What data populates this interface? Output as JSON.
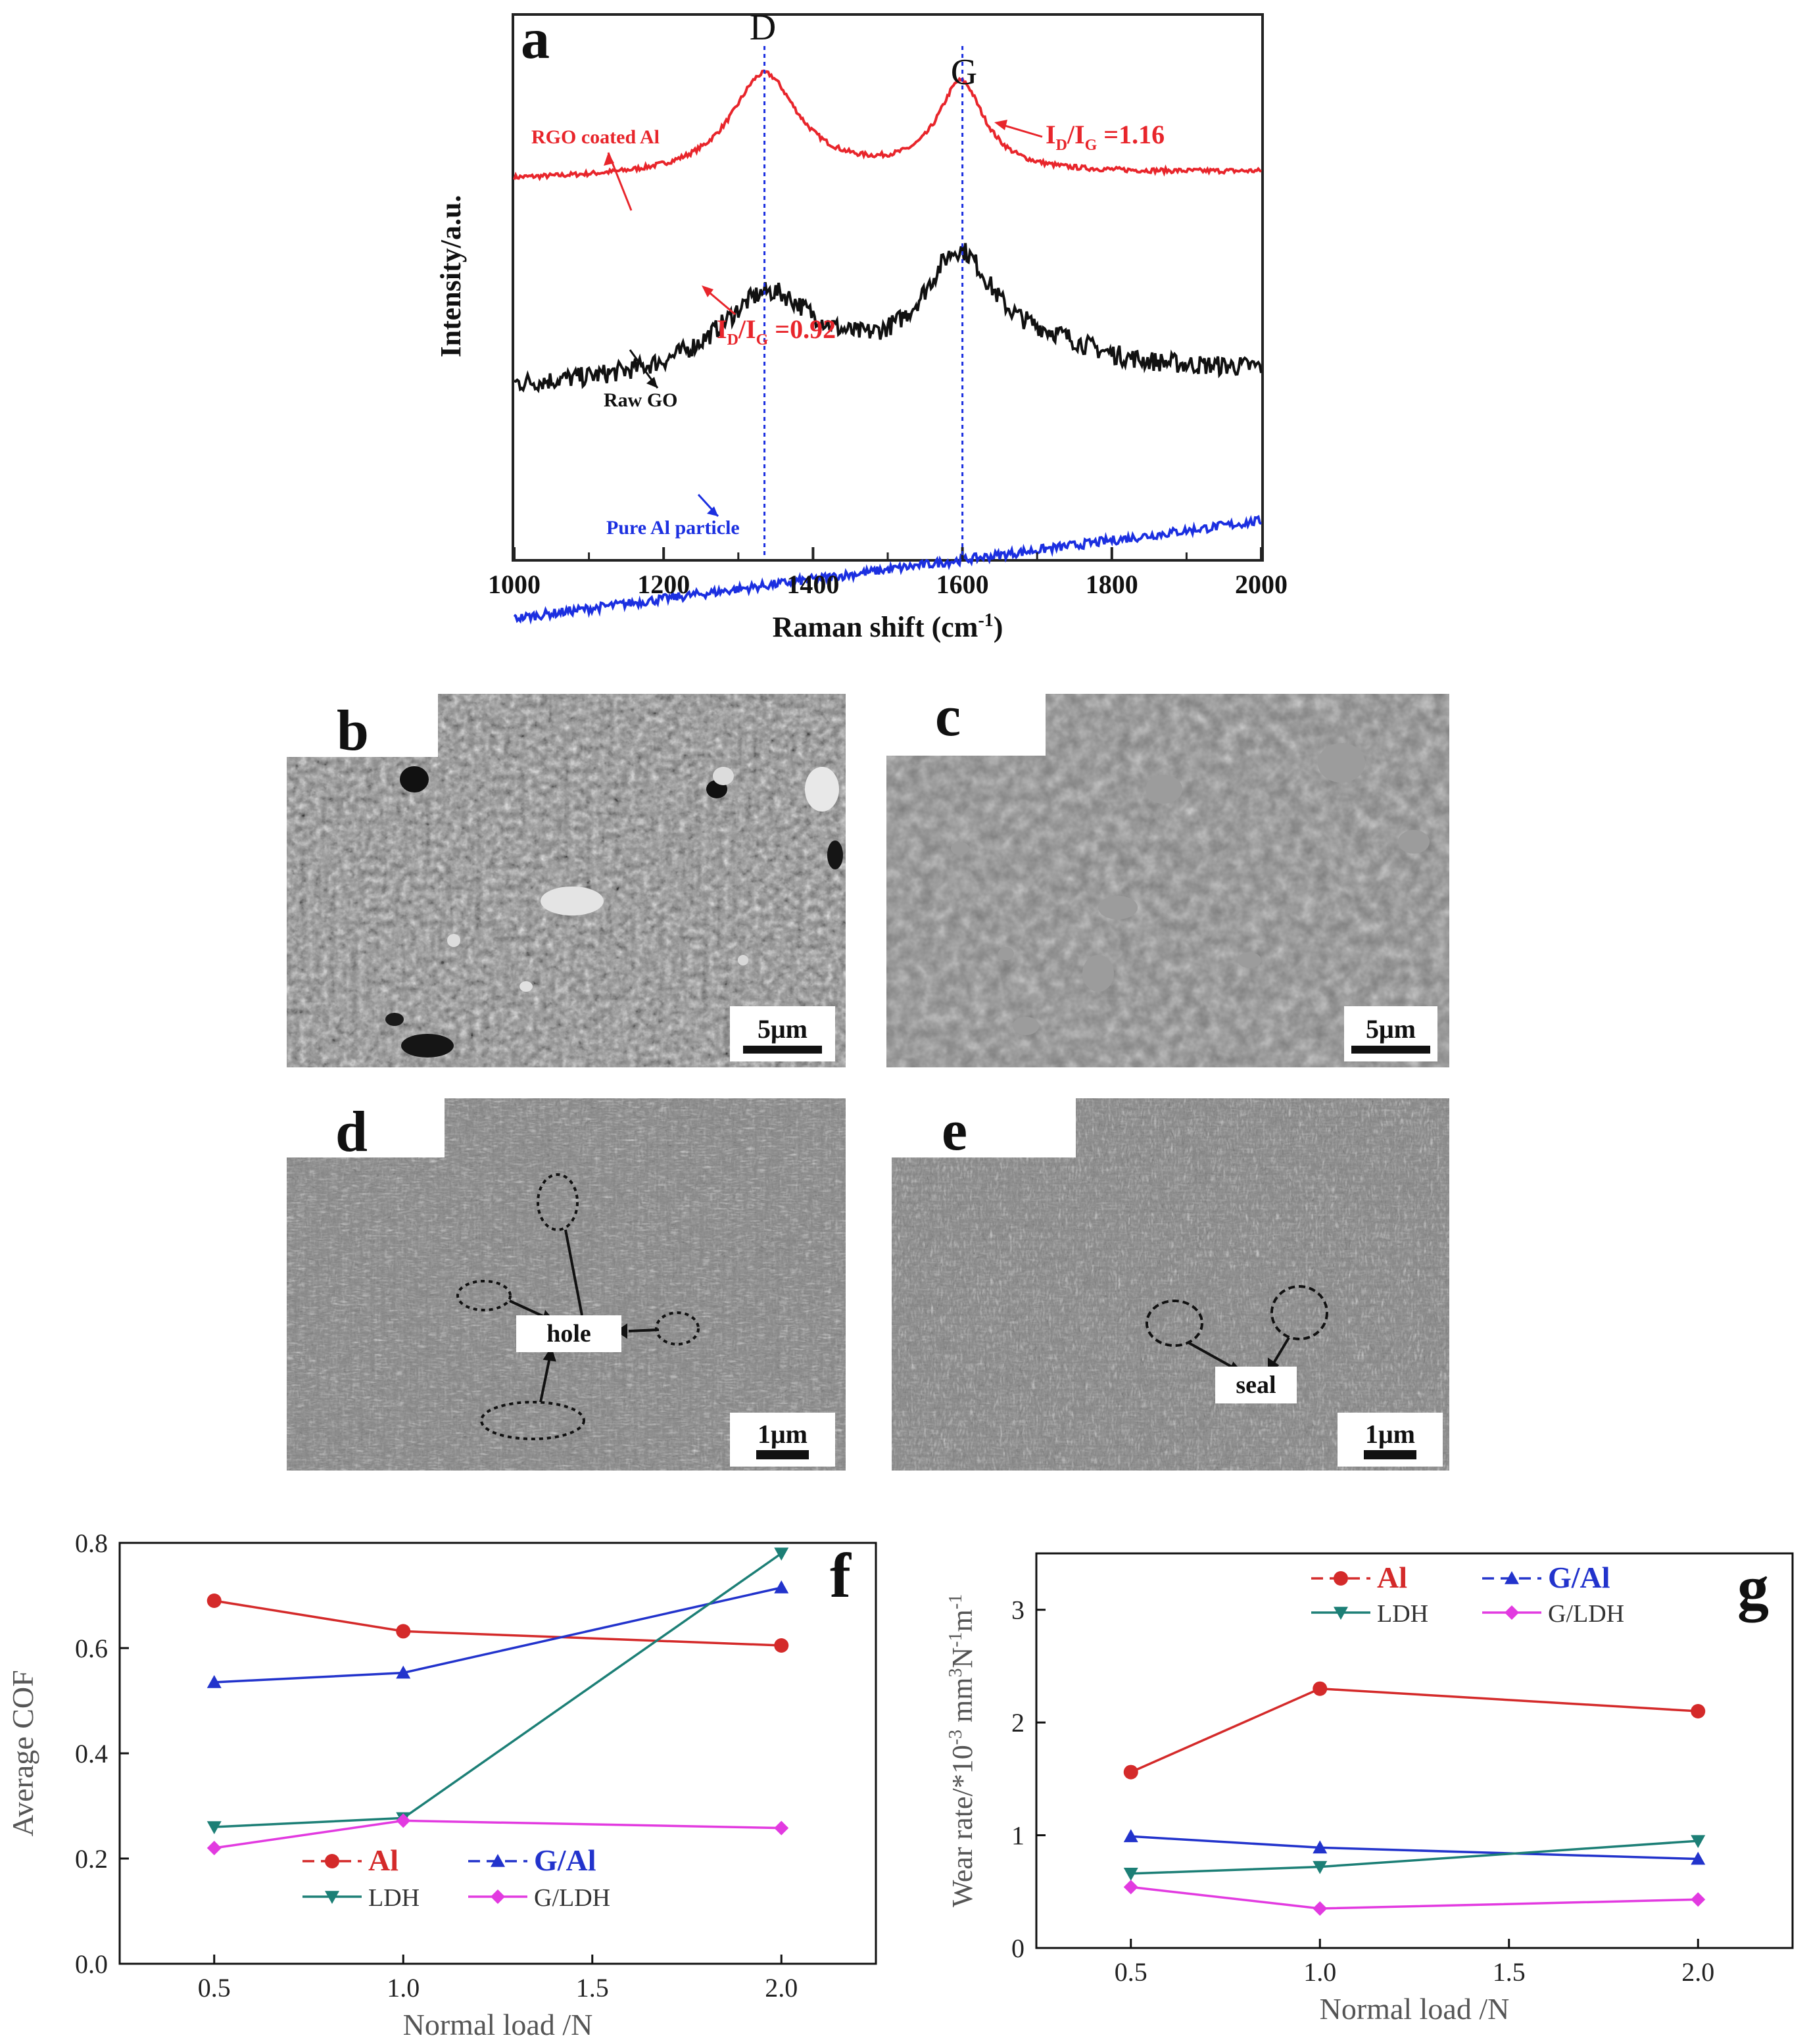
{
  "figure": {
    "panel_letters": [
      "a",
      "b",
      "c",
      "d",
      "e",
      "f",
      "g"
    ]
  },
  "chart_data": [
    {
      "panel": "a",
      "type": "line",
      "xlabel": "Raman shift (cm",
      "xlabel_sup": "-1",
      "xlabel_end": ")",
      "ylabel": "Intensity/a.u.",
      "xlim": [
        1000,
        2000
      ],
      "xticks": [
        1000,
        1200,
        1400,
        1600,
        1800,
        2000
      ],
      "peaks": [
        {
          "label": "D",
          "x": 1335
        },
        {
          "label": "G",
          "x": 1600
        }
      ],
      "series": [
        {
          "name": "RGO coated Al",
          "color": "#e8252b",
          "baseline_start": 0.22,
          "baseline_end": 0.26,
          "peaks": [
            {
              "x": 1335,
              "height": 0.52,
              "width": 55
            },
            {
              "x": 1598,
              "height": 0.46,
              "width": 38
            }
          ],
          "noise": 0.012
        },
        {
          "name": "Raw GO",
          "color": "#111111",
          "baseline_start": 0.0,
          "baseline_end": 0.07,
          "peaks": [
            {
              "x": 1340,
              "height": 0.34,
              "width": 85
            },
            {
              "x": 1595,
              "height": 0.46,
              "width": 60
            },
            {
              "x": 1720,
              "height": 0.08,
              "width": 80
            }
          ],
          "noise": 0.04
        },
        {
          "name": "Pure Al particle",
          "color": "#1b2fe0",
          "baseline_start": -0.39,
          "baseline_end": 0.0,
          "peaks": [],
          "noise": 0.018
        }
      ],
      "annotations": [
        {
          "text": "I",
          "sub": "D",
          "mid": "/I",
          "sub2": "G",
          "value": " =1.16",
          "color": "#e8252b"
        },
        {
          "text": "I",
          "sub": "D",
          "mid": "/I",
          "sub2": "G",
          "value": " =0.92",
          "color": "#e8252b"
        }
      ]
    },
    {
      "panel": "f",
      "type": "line",
      "xlabel": "Normal load /N",
      "ylabel": "Average COF",
      "x": [
        0.5,
        1.0,
        2.0
      ],
      "xlim": [
        0.25,
        2.25
      ],
      "ylim": [
        0.0,
        0.8
      ],
      "xticks": [
        "0.5",
        "1.0",
        "1.5",
        "2.0"
      ],
      "yticks": [
        "0.0",
        "0.2",
        "0.4",
        "0.6",
        "0.8"
      ],
      "series": [
        {
          "name": "Al",
          "color": "#d42a2a",
          "marker": "circle",
          "values": [
            0.69,
            0.632,
            0.605
          ]
        },
        {
          "name": "G/Al",
          "color": "#2233cc",
          "marker": "triangle-up",
          "values": [
            0.535,
            0.553,
            0.715
          ]
        },
        {
          "name": "LDH",
          "color": "#1c7f76",
          "marker": "triangle-down",
          "values": [
            0.26,
            0.277,
            0.78
          ]
        },
        {
          "name": "G/LDH",
          "color": "#e23ae0",
          "marker": "diamond",
          "values": [
            0.22,
            0.272,
            0.258
          ]
        }
      ]
    },
    {
      "panel": "g",
      "type": "line",
      "xlabel": "Normal load /N",
      "ylabel": "Wear rate/*10",
      "ylabel_units": "mm",
      "ylabel_sup1": "-3",
      "ylabel_sup2": "3",
      "ylabel_n": "N",
      "ylabel_m": "m",
      "ylabel_sup3": "-1",
      "ylabel_sup4": "-1",
      "x": [
        0.5,
        1.0,
        2.0
      ],
      "xlim": [
        0.25,
        2.25
      ],
      "ylim": [
        0,
        3.5
      ],
      "xticks": [
        "0.5",
        "1.0",
        "1.5",
        "2.0"
      ],
      "yticks": [
        "0",
        "1",
        "2",
        "3"
      ],
      "series": [
        {
          "name": "Al",
          "color": "#d42a2a",
          "marker": "circle",
          "values": [
            1.56,
            2.3,
            2.1
          ]
        },
        {
          "name": "G/Al",
          "color": "#2233cc",
          "marker": "triangle-up",
          "values": [
            0.99,
            0.89,
            0.79
          ]
        },
        {
          "name": "LDH",
          "color": "#1c7f76",
          "marker": "triangle-down",
          "values": [
            0.66,
            0.72,
            0.95
          ]
        },
        {
          "name": "G/LDH",
          "color": "#e23ae0",
          "marker": "diamond",
          "values": [
            0.54,
            0.35,
            0.43
          ]
        }
      ]
    }
  ],
  "sem_images": [
    {
      "panel": "b",
      "scale_bar": "5μm"
    },
    {
      "panel": "c",
      "scale_bar": "5μm"
    },
    {
      "panel": "d",
      "scale_bar": "1μm",
      "annotation": "hole"
    },
    {
      "panel": "e",
      "scale_bar": "1μm",
      "annotation": "seal"
    }
  ]
}
